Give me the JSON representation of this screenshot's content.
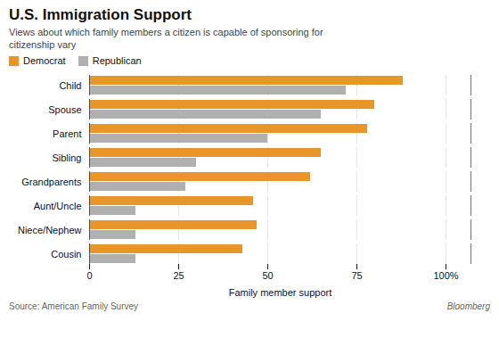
{
  "chart_data": {
    "type": "bar",
    "orientation": "horizontal",
    "title": "U.S. Immigration Support",
    "subtitle": "Views about which family members a citizen is capable of sponsoring for\ncitizenship vary",
    "categories": [
      "Child",
      "Spouse",
      "Parent",
      "Sibling",
      "Grandparents",
      "Aunt/Uncle",
      "Niece/Nephew",
      "Cousin"
    ],
    "series": [
      {
        "name": "Democrat",
        "color": "#E8962A",
        "values": [
          88,
          80,
          78,
          65,
          62,
          46,
          47,
          43
        ]
      },
      {
        "name": "Republican",
        "color": "#B0B0B0",
        "values": [
          72,
          65,
          50,
          30,
          27,
          13,
          13,
          13
        ]
      }
    ],
    "xlabel": "Family member support",
    "xlim": [
      0,
      107
    ],
    "xticks": [
      0,
      25,
      50,
      75,
      {
        "value": 100,
        "label": "100%"
      }
    ],
    "grid": true,
    "legend": "upper left",
    "annotations": [
      "Source: American Family Survey",
      "Bloomberg"
    ]
  }
}
